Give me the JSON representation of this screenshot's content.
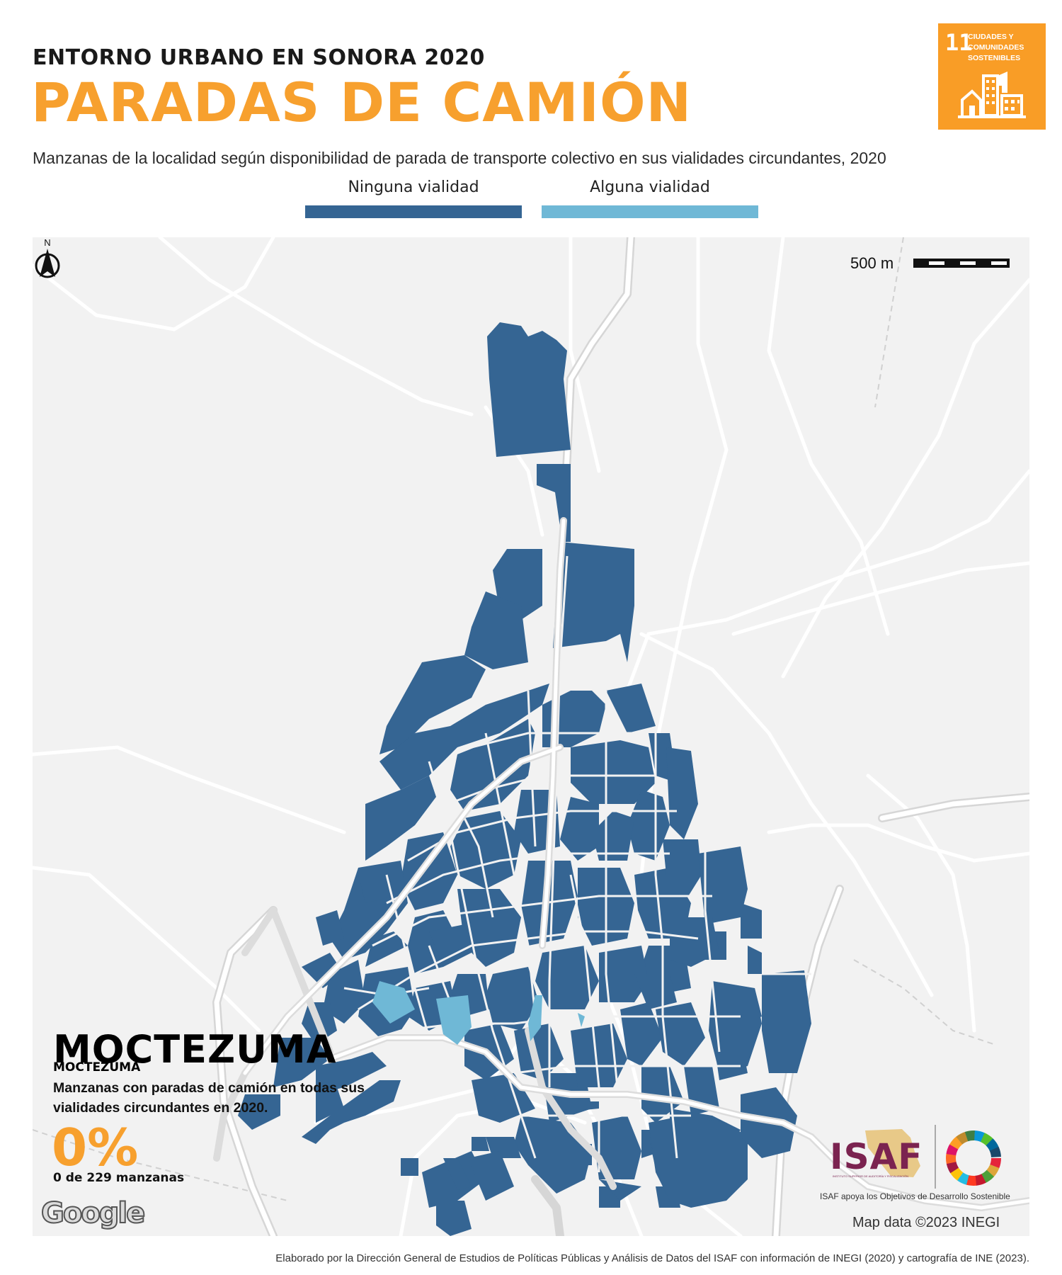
{
  "header": {
    "kicker": "ENTORNO URBANO EN SONORA 2020",
    "title": "PARADAS DE CAMIÓN"
  },
  "sdg_badge": {
    "number": "11",
    "text": "CIUDADES Y COMUNIDADES SOSTENIBLES",
    "color": "#f99d26",
    "icon": "city-buildings-icon"
  },
  "subtitle": "Manzanas de la localidad según disponibilidad de parada de transporte colectivo en sus vialidades circundantes, 2020",
  "legend": {
    "items": [
      {
        "label": "Ninguna vialidad",
        "color": "#356593"
      },
      {
        "label": "Alguna vialidad",
        "color": "#6fb8d6"
      }
    ]
  },
  "map": {
    "scale_label": "500 m",
    "north_label": "N",
    "attribution": "Map data ©2023 INEGI",
    "provider_logo": "Google",
    "background_color": "#f2f2f2",
    "road_color": "#ffffff"
  },
  "place": {
    "name": "MOCTEZUMA",
    "municipality": "MOCTEZUMA",
    "description": "Manzanas con paradas de camión en todas sus vialidades circundantes en 2020.",
    "percent": "0%",
    "count_text": "0 de 229 manzanas"
  },
  "logos": {
    "isaf": "ISAF",
    "isaf_small": "INSTITUTO SUPERIOR DE AUDITORÍA Y FISCALIZACIÓN",
    "tagline": "ISAF apoya los Objetivos de Desarrollo Sostenible"
  },
  "footer": "Elaborado por la Dirección General de Estudios de Políticas Públicas y Análisis de Datos del ISAF con información de INEGI (2020) y cartografía de INE (2023)."
}
